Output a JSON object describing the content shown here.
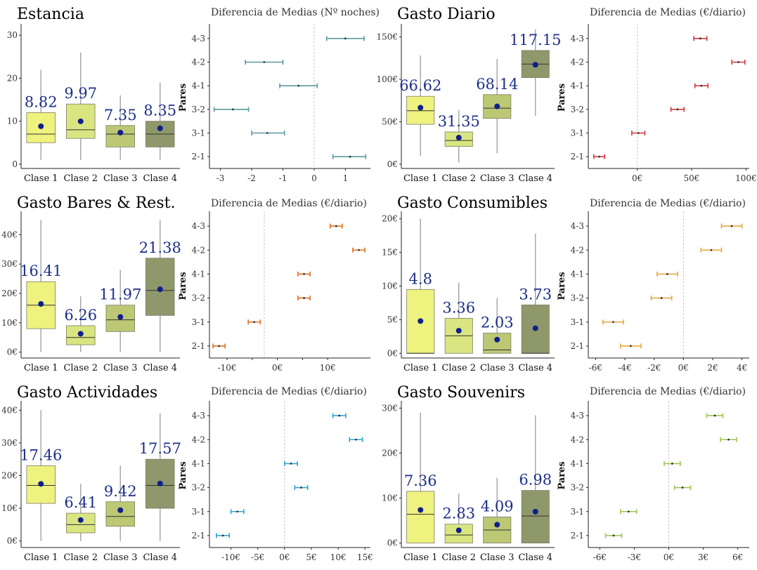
{
  "chart_data": [
    {
      "type": "box",
      "title": "Estancia",
      "categories": [
        "Clase 1",
        "Clase 2",
        "Clase 3",
        "Clase 4"
      ],
      "means": [
        8.82,
        9.97,
        7.35,
        8.35
      ],
      "mean_labels": [
        "8.82",
        "9.97",
        "7.35",
        "8.35"
      ],
      "boxes": [
        {
          "low": 1,
          "q1": 5,
          "median": 7,
          "q3": 12,
          "high": 22
        },
        {
          "low": 1,
          "q1": 6,
          "median": 8,
          "q3": 14,
          "high": 26
        },
        {
          "low": 1,
          "q1": 4,
          "median": 7,
          "q3": 9,
          "high": 16
        },
        {
          "low": 1,
          "q1": 4,
          "median": 7,
          "q3": 10,
          "high": 19
        }
      ],
      "ylim": [
        -1,
        32
      ],
      "yticks": [
        0,
        10,
        20,
        30
      ],
      "ytick_labels": [
        "0",
        "10",
        "20",
        "30"
      ],
      "colors": [
        "#eef27e",
        "#d9e581",
        "#bcc873",
        "#8f986a"
      ]
    },
    {
      "type": "errorbar",
      "title": "Diferencia de Medias (Nº noches)",
      "ylabel": "Pares",
      "pairs": [
        "4-3",
        "4-2",
        "4-1",
        "3-2",
        "3-1",
        "2-1"
      ],
      "estimates": [
        1.0,
        -1.6,
        -0.5,
        -2.6,
        -1.5,
        1.15
      ],
      "lower": [
        0.4,
        -2.2,
        -1.1,
        -3.2,
        -2.0,
        0.6
      ],
      "upper": [
        1.6,
        -1.0,
        0.1,
        -2.1,
        -0.95,
        1.65
      ],
      "xlim": [
        -3.35,
        1.8
      ],
      "xticks": [
        -3,
        -2,
        -1,
        0,
        1
      ],
      "xtick_labels": [
        "-3",
        "-2",
        "-1",
        "0",
        "1"
      ],
      "color": "#5b9aa0",
      "zero": 0
    },
    {
      "type": "box",
      "title": "Gasto Diario",
      "categories": [
        "Clase 1",
        "Clase 2",
        "Clase 3",
        "Clase 4"
      ],
      "means": [
        66.62,
        31.35,
        68.14,
        117.15
      ],
      "mean_labels": [
        "66.62",
        "31.35",
        "68.14",
        "117.15"
      ],
      "boxes": [
        {
          "low": 10,
          "q1": 47,
          "median": 63,
          "q3": 80,
          "high": 128
        },
        {
          "low": 2,
          "q1": 21,
          "median": 28,
          "q3": 38,
          "high": 64
        },
        {
          "low": 13,
          "q1": 54,
          "median": 66,
          "q3": 82,
          "high": 124
        },
        {
          "low": 57,
          "q1": 102,
          "median": 118,
          "q3": 134,
          "high": 159
        }
      ],
      "ylim": [
        -5,
        162
      ],
      "yticks": [
        0,
        50,
        100,
        150
      ],
      "ytick_labels": [
        "0€",
        "50€",
        "100€",
        "150€"
      ],
      "colors": [
        "#eef27e",
        "#d9e581",
        "#bcc873",
        "#8f986a"
      ]
    },
    {
      "type": "errorbar",
      "title": "Diferencia de Medias (€/diario)",
      "ylabel": "Pares",
      "pairs": [
        "4-3",
        "4-2",
        "4-1",
        "3-2",
        "3-1",
        "2-1"
      ],
      "estimates": [
        58,
        93,
        59,
        37,
        1,
        -35
      ],
      "lower": [
        52,
        87,
        53,
        31,
        -5,
        -40
      ],
      "upper": [
        64,
        99,
        65,
        43,
        7,
        -30
      ],
      "xlim": [
        -45,
        103
      ],
      "xticks": [
        0,
        50,
        100
      ],
      "xtick_labels": [
        "0€",
        "50€",
        "100€"
      ],
      "color": "#d9373f",
      "zero": 0
    },
    {
      "type": "box",
      "title": "Gasto Bares & Rest.",
      "categories": [
        "Clase 1",
        "Clase 2",
        "Clase 3",
        "Clase 4"
      ],
      "means": [
        16.41,
        6.26,
        11.97,
        21.38
      ],
      "mean_labels": [
        "16.41",
        "6.26",
        "11.97",
        "21.38"
      ],
      "boxes": [
        {
          "low": 0,
          "q1": 8,
          "median": 16,
          "q3": 24,
          "high": 45
        },
        {
          "low": 0,
          "q1": 2.5,
          "median": 5,
          "q3": 9,
          "high": 19
        },
        {
          "low": 0,
          "q1": 7,
          "median": 11,
          "q3": 16,
          "high": 28
        },
        {
          "low": 0,
          "q1": 12.5,
          "median": 21,
          "q3": 32,
          "high": 45
        }
      ],
      "ylim": [
        -2,
        47
      ],
      "yticks": [
        0,
        10,
        20,
        30,
        40
      ],
      "ytick_labels": [
        "0€",
        "10€",
        "20€",
        "30€",
        "40€"
      ],
      "colors": [
        "#eef27e",
        "#d9e581",
        "#bcc873",
        "#8f986a"
      ]
    },
    {
      "type": "errorbar",
      "title": "Diferencia de Medias (€/diario)",
      "ylabel": "Pares",
      "pairs": [
        "4-3",
        "4-2",
        "4-1",
        "3-2",
        "3-1",
        "2-1"
      ],
      "estimates": [
        11.7,
        16.2,
        5.3,
        5.3,
        -4.6,
        -11.6
      ],
      "lower": [
        10.5,
        15.0,
        4.1,
        4.1,
        -5.8,
        -12.8
      ],
      "upper": [
        12.9,
        17.4,
        6.5,
        6.5,
        -3.4,
        -10.4
      ],
      "xlim": [
        -13.5,
        18.5
      ],
      "xticks": [
        -10,
        -5,
        0,
        5,
        10
      ],
      "xtick_labels": [
        "-10€",
        "",
        "0€",
        "",
        "10€"
      ],
      "color": "#e1711f",
      "zero": -2.6
    },
    {
      "type": "box",
      "title": "Gasto Consumibles",
      "categories": [
        "Clase 1",
        "Clase 2",
        "Clase 3",
        "Clase 4"
      ],
      "means": [
        4.8,
        3.36,
        2.03,
        3.73
      ],
      "mean_labels": [
        "4.8",
        "3.36",
        "2.03",
        "3.73"
      ],
      "boxes": [
        {
          "low": 0,
          "q1": 0,
          "median": 0,
          "q3": 9.5,
          "high": 20
        },
        {
          "low": 0,
          "q1": 0,
          "median": 2.6,
          "q3": 5.2,
          "high": 10.5
        },
        {
          "low": 0,
          "q1": 0,
          "median": 0.5,
          "q3": 3,
          "high": 8.2
        },
        {
          "low": 0,
          "q1": 0,
          "median": 0,
          "q3": 7.2,
          "high": 17.8
        }
      ],
      "ylim": [
        -0.7,
        20.7
      ],
      "yticks": [
        0,
        5,
        10,
        15,
        20
      ],
      "ytick_labels": [
        "0€",
        "5€",
        "10€",
        "15€",
        "20€"
      ],
      "colors": [
        "#eef27e",
        "#d9e581",
        "#bcc873",
        "#8f986a"
      ]
    },
    {
      "type": "errorbar",
      "title": "Diferencia de Medias (€/diario)",
      "ylabel": "Pares",
      "pairs": [
        "4-3",
        "4-2",
        "4-1",
        "3-2",
        "3-1",
        "2-1"
      ],
      "estimates": [
        3.3,
        1.9,
        -1.1,
        -1.5,
        -4.8,
        -3.6
      ],
      "lower": [
        2.6,
        1.2,
        -1.8,
        -2.2,
        -5.5,
        -4.3
      ],
      "upper": [
        4.0,
        2.6,
        -0.4,
        -0.8,
        -4.1,
        -2.9
      ],
      "xlim": [
        -6.5,
        4.5
      ],
      "xticks": [
        -6,
        -4,
        -2,
        0,
        2,
        4
      ],
      "xtick_labels": [
        "-6€",
        "-4€",
        "-2€",
        "0€",
        "2€",
        "4€"
      ],
      "color": "#e8a83a",
      "zero": 0
    },
    {
      "type": "box",
      "title": "Gasto Actividades",
      "categories": [
        "Clase 1",
        "Clase 2",
        "Clase 3",
        "Clase 4"
      ],
      "means": [
        17.46,
        6.41,
        9.42,
        17.57
      ],
      "mean_labels": [
        "17.46",
        "6.41",
        "9.42",
        "17.57"
      ],
      "boxes": [
        {
          "low": 0,
          "q1": 11.5,
          "median": 17,
          "q3": 23,
          "high": 40
        },
        {
          "low": 0,
          "q1": 2.5,
          "median": 5,
          "q3": 8.5,
          "high": 17.5
        },
        {
          "low": 0,
          "q1": 4.5,
          "median": 7.5,
          "q3": 12,
          "high": 23
        },
        {
          "low": 0,
          "q1": 10,
          "median": 17,
          "q3": 25,
          "high": 39
        }
      ],
      "ylim": [
        -2,
        42
      ],
      "yticks": [
        0,
        10,
        20,
        30,
        40
      ],
      "ytick_labels": [
        "0€",
        "10€",
        "20€",
        "30€",
        "40€"
      ],
      "colors": [
        "#eef27e",
        "#d9e581",
        "#bcc873",
        "#8f986a"
      ]
    },
    {
      "type": "errorbar",
      "title": "Diferencia de Medias (€/diario)",
      "ylabel": "Pares",
      "pairs": [
        "4-3",
        "4-2",
        "4-1",
        "3-2",
        "3-1",
        "2-1"
      ],
      "estimates": [
        10.2,
        13.3,
        1.2,
        3.1,
        -8.8,
        -11.5
      ],
      "lower": [
        9.0,
        12.1,
        0.0,
        1.9,
        -10.0,
        -12.7
      ],
      "upper": [
        11.4,
        14.5,
        2.4,
        4.3,
        -7.6,
        -10.3
      ],
      "xlim": [
        -14,
        16
      ],
      "xticks": [
        -10,
        -5,
        0,
        5,
        10,
        15
      ],
      "xtick_labels": [
        "-10€",
        "-5€",
        "0€",
        "5€",
        "10€",
        "15€"
      ],
      "color": "#2fa4d0",
      "zero": 0
    },
    {
      "type": "box",
      "title": "Gasto Souvenirs",
      "categories": [
        "Clase 1",
        "Clase 2",
        "Clase 3",
        "Clase 4"
      ],
      "means": [
        7.36,
        2.83,
        4.09,
        6.98
      ],
      "mean_labels": [
        "7.36",
        "2.83",
        "4.09",
        "6.98"
      ],
      "boxes": [
        {
          "low": 0,
          "q1": 0,
          "median": 6.4,
          "q3": 11.5,
          "high": 29
        },
        {
          "low": 0,
          "q1": 0,
          "median": 1.8,
          "q3": 4.2,
          "high": 11
        },
        {
          "low": 0,
          "q1": 0,
          "median": 2.9,
          "q3": 5.8,
          "high": 14.5
        },
        {
          "low": 0,
          "q1": 0,
          "median": 6,
          "q3": 11.7,
          "high": 28.4
        }
      ],
      "ylim": [
        -1,
        31
      ],
      "yticks": [
        0,
        10,
        20,
        30
      ],
      "ytick_labels": [
        "0€",
        "10€",
        "20€",
        "30€"
      ],
      "colors": [
        "#eef27e",
        "#d9e581",
        "#bcc873",
        "#8f986a"
      ]
    },
    {
      "type": "errorbar",
      "title": "Diferencia de Medias (€/diario)",
      "ylabel": "Pares",
      "pairs": [
        "4-3",
        "4-2",
        "4-1",
        "3-2",
        "3-1",
        "2-1"
      ],
      "estimates": [
        4.0,
        5.2,
        0.3,
        1.2,
        -3.5,
        -4.8
      ],
      "lower": [
        3.3,
        4.5,
        -0.4,
        0.5,
        -4.2,
        -5.5
      ],
      "upper": [
        4.7,
        5.9,
        1.0,
        1.9,
        -2.8,
        -4.1
      ],
      "xlim": [
        -7,
        7
      ],
      "xticks": [
        -6,
        -3,
        0,
        3,
        6
      ],
      "xtick_labels": [
        "-6€",
        "-3€",
        "0€",
        "3€",
        "6€"
      ],
      "color": "#9fc556",
      "zero": 0
    }
  ]
}
